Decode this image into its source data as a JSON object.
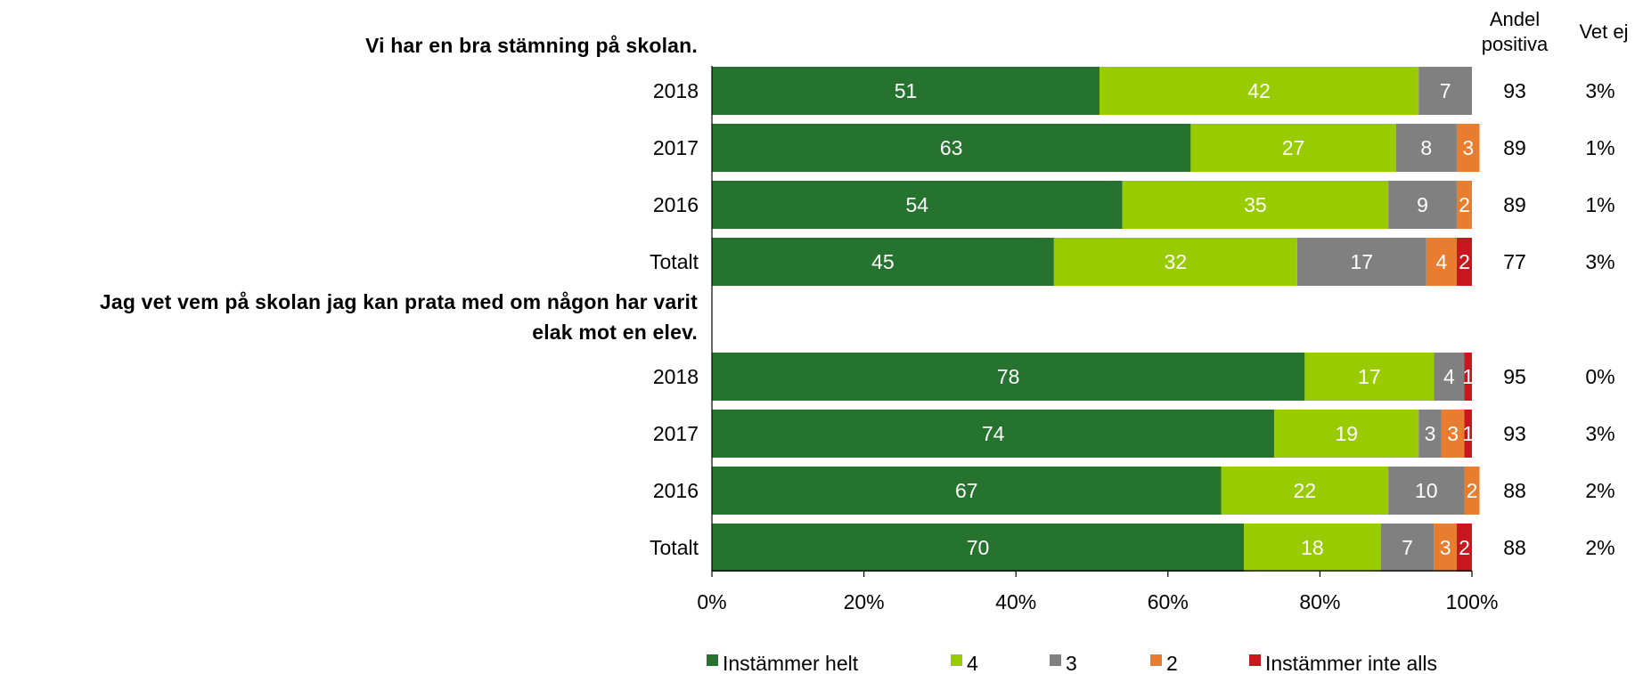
{
  "headers": {
    "andel_line1": "Andel",
    "andel_line2": "positiva",
    "vet_ej": "Vet ej"
  },
  "colors": {
    "instammer_helt": "#267330",
    "four": "#99CC00",
    "three": "#808080",
    "two": "#E87D2F",
    "instammer_inte_alls": "#C8181E"
  },
  "legend": [
    {
      "key": "instammer_helt",
      "label": "Instämmer helt"
    },
    {
      "key": "four",
      "label": "4"
    },
    {
      "key": "three",
      "label": "3"
    },
    {
      "key": "two",
      "label": "2"
    },
    {
      "key": "instammer_inte_alls",
      "label": "Instämmer inte alls"
    }
  ],
  "chart_data": {
    "type": "bar",
    "orientation": "horizontal",
    "stacked": "percent",
    "xlim": [
      0,
      100
    ],
    "xticks": [
      "0%",
      "20%",
      "40%",
      "60%",
      "80%",
      "100%"
    ],
    "series_order": [
      "instammer_helt",
      "four",
      "three",
      "two",
      "instammer_inte_alls"
    ],
    "groups": [
      {
        "title": "Vi har en bra stämning på skolan.",
        "rows": [
          {
            "label": "2018",
            "values": [
              51,
              42,
              7,
              0,
              0
            ],
            "andel_positiva": "93",
            "vet_ej": "3%"
          },
          {
            "label": "2017",
            "values": [
              63,
              27,
              8,
              3,
              0
            ],
            "andel_positiva": "89",
            "vet_ej": "1%"
          },
          {
            "label": "2016",
            "values": [
              54,
              35,
              9,
              2,
              0
            ],
            "andel_positiva": "89",
            "vet_ej": "1%"
          },
          {
            "label": "Totalt",
            "values": [
              45,
              32,
              17,
              4,
              2
            ],
            "andel_positiva": "77",
            "vet_ej": "3%"
          }
        ]
      },
      {
        "title_lines": [
          "Jag vet vem på skolan jag kan prata med om någon har varit",
          "elak mot en elev."
        ],
        "rows": [
          {
            "label": "2018",
            "values": [
              78,
              17,
              4,
              0,
              1
            ],
            "andel_positiva": "95",
            "vet_ej": "0%"
          },
          {
            "label": "2017",
            "values": [
              74,
              19,
              3,
              3,
              1
            ],
            "andel_positiva": "93",
            "vet_ej": "3%"
          },
          {
            "label": "2016",
            "values": [
              67,
              22,
              10,
              2,
              0
            ],
            "andel_positiva": "88",
            "vet_ej": "2%"
          },
          {
            "label": "Totalt",
            "values": [
              70,
              18,
              7,
              3,
              2
            ],
            "andel_positiva": "88",
            "vet_ej": "2%"
          }
        ]
      }
    ]
  }
}
